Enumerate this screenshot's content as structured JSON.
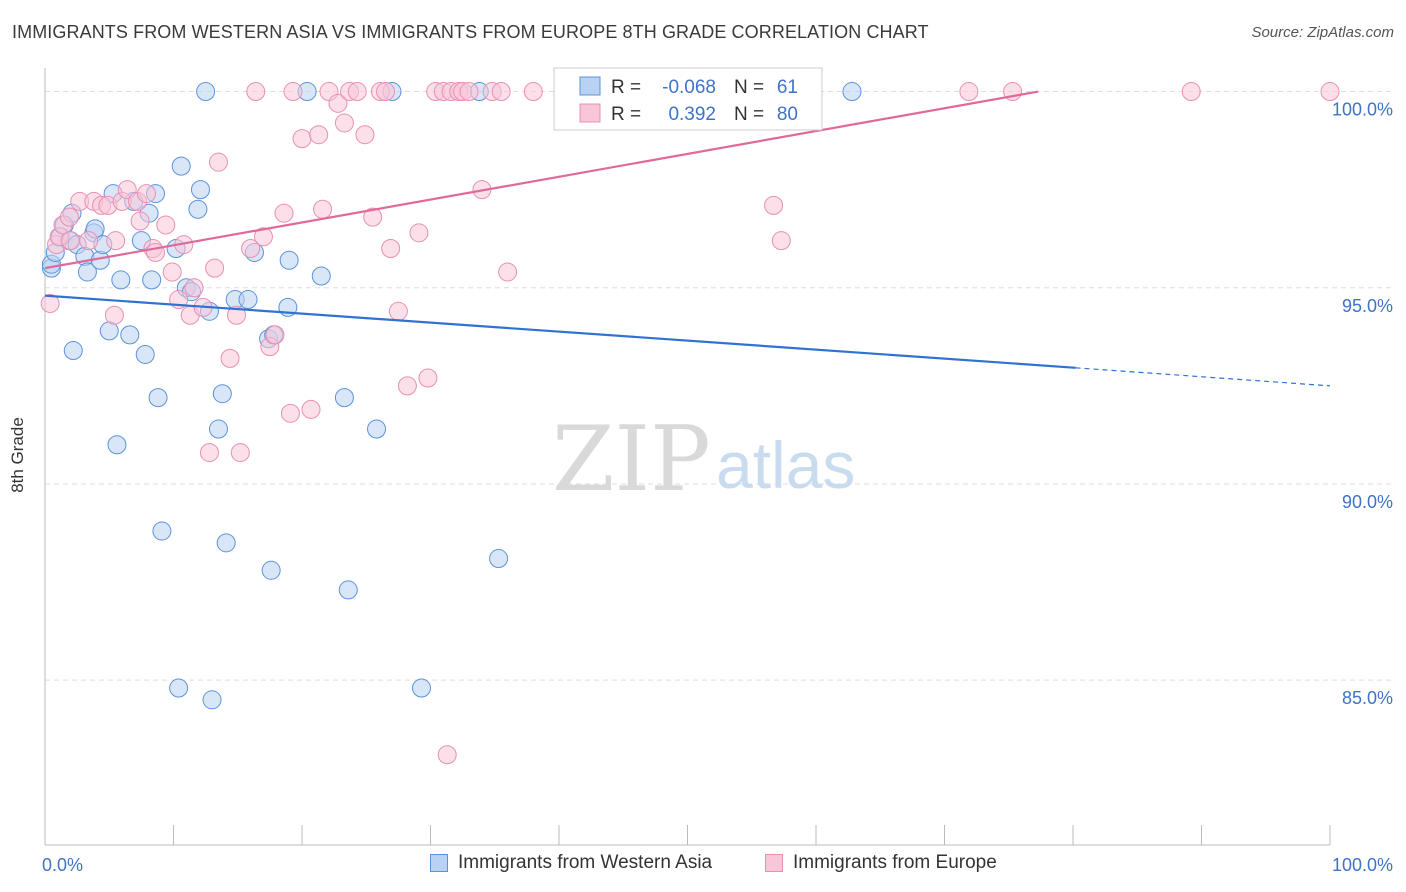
{
  "title": "IMMIGRANTS FROM WESTERN ASIA VS IMMIGRANTS FROM EUROPE 8TH GRADE CORRELATION CHART",
  "source": "Source: ZipAtlas.com",
  "watermark": {
    "zip": "ZIP",
    "atlas": "atlas"
  },
  "colors": {
    "blue": "#2f72d2",
    "blue_fill": "#b9d2f3",
    "blue_edge": "#5b93dc",
    "pink": "#e0699a",
    "pink_fill": "#f8c6d8",
    "pink_edge": "#ea8fb3",
    "grid": "#dddddd",
    "axis_text": "#3f73c8"
  },
  "legend_box": {
    "rows": [
      {
        "r_label": "R =",
        "r_value": "-0.068",
        "n_label": "N =",
        "n_value": "61"
      },
      {
        "r_label": "R =",
        "r_value": "0.392",
        "n_label": "N =",
        "n_value": "80"
      }
    ]
  },
  "bottom_legend": [
    "Immigrants from Western Asia",
    "Immigrants from Europe"
  ],
  "chart_data": {
    "type": "scatter",
    "title": "IMMIGRANTS FROM WESTERN ASIA VS IMMIGRANTS FROM EUROPE 8TH GRADE CORRELATION CHART",
    "xlabel": "",
    "ylabel": "8th Grade",
    "xlim": [
      0,
      100
    ],
    "ylim": [
      80.8,
      100.6
    ],
    "x_tick_labels": [
      "0.0%",
      "100.0%"
    ],
    "y_ticks": [
      100,
      95,
      90,
      85
    ],
    "y_tick_labels": [
      "100.0%",
      "95.0%",
      "90.0%",
      "85.0%"
    ],
    "grid": true,
    "series": [
      {
        "name": "Immigrants from Western Asia",
        "color": "#2f72d2",
        "R": -0.068,
        "N": 61,
        "trend": {
          "x1": 0,
          "y1": 94.8,
          "x2": 80.2,
          "y2": 92.96,
          "dash_to_x": 100,
          "dash_to_y": 92.5
        },
        "points": [
          [
            0.5,
            95.5
          ],
          [
            0.5,
            95.6
          ],
          [
            0.8,
            95.9
          ],
          [
            1.2,
            96.3
          ],
          [
            1.5,
            96.6
          ],
          [
            1.9,
            96.2
          ],
          [
            2.1,
            96.9
          ],
          [
            2.2,
            93.4
          ],
          [
            2.5,
            96.1
          ],
          [
            3.1,
            95.8
          ],
          [
            3.3,
            95.4
          ],
          [
            3.8,
            96.4
          ],
          [
            3.9,
            96.5
          ],
          [
            4.3,
            95.7
          ],
          [
            4.5,
            96.1
          ],
          [
            5.0,
            93.9
          ],
          [
            5.3,
            97.4
          ],
          [
            5.6,
            91.0
          ],
          [
            5.9,
            95.2
          ],
          [
            6.6,
            93.8
          ],
          [
            6.9,
            97.2
          ],
          [
            7.5,
            96.2
          ],
          [
            7.8,
            93.3
          ],
          [
            8.1,
            96.9
          ],
          [
            8.3,
            95.2
          ],
          [
            8.6,
            97.4
          ],
          [
            8.8,
            92.2
          ],
          [
            9.1,
            88.8
          ],
          [
            10.2,
            96.0
          ],
          [
            10.4,
            84.8
          ],
          [
            10.6,
            98.1
          ],
          [
            11.0,
            95.0
          ],
          [
            11.4,
            94.9
          ],
          [
            11.9,
            97.0
          ],
          [
            12.1,
            97.5
          ],
          [
            12.5,
            100.0
          ],
          [
            12.8,
            94.4
          ],
          [
            13.5,
            91.4
          ],
          [
            13.8,
            92.3
          ],
          [
            14.1,
            88.5
          ],
          [
            14.8,
            94.7
          ],
          [
            15.8,
            94.7
          ],
          [
            16.3,
            95.9
          ],
          [
            17.4,
            93.7
          ],
          [
            17.6,
            87.8
          ],
          [
            18.9,
            94.5
          ],
          [
            19.0,
            95.7
          ],
          [
            20.4,
            100.0
          ],
          [
            21.5,
            95.3
          ],
          [
            23.3,
            92.2
          ],
          [
            23.6,
            87.3
          ],
          [
            25.8,
            91.4
          ],
          [
            27.0,
            100.0
          ],
          [
            29.3,
            84.8
          ],
          [
            33.8,
            100.0
          ],
          [
            35.3,
            88.1
          ],
          [
            41.9,
            100.0
          ],
          [
            46.7,
            100.0
          ],
          [
            62.8,
            100.0
          ],
          [
            13.0,
            84.5
          ],
          [
            17.8,
            93.8
          ]
        ]
      },
      {
        "name": "Immigrants from Europe",
        "color": "#e0699a",
        "R": 0.392,
        "N": 80,
        "trend": {
          "x1": 0,
          "y1": 95.5,
          "x2": 77.3,
          "y2": 100.0
        },
        "points": [
          [
            0.4,
            94.6
          ],
          [
            0.9,
            96.1
          ],
          [
            1.1,
            96.3
          ],
          [
            1.4,
            96.6
          ],
          [
            1.9,
            96.8
          ],
          [
            2.0,
            96.2
          ],
          [
            2.7,
            97.2
          ],
          [
            3.4,
            96.2
          ],
          [
            3.8,
            97.2
          ],
          [
            4.4,
            97.1
          ],
          [
            4.9,
            97.1
          ],
          [
            5.4,
            94.3
          ],
          [
            5.5,
            96.2
          ],
          [
            6.0,
            97.2
          ],
          [
            6.4,
            97.5
          ],
          [
            7.2,
            97.2
          ],
          [
            7.4,
            96.7
          ],
          [
            7.9,
            97.4
          ],
          [
            8.4,
            96.0
          ],
          [
            8.6,
            95.9
          ],
          [
            9.4,
            96.6
          ],
          [
            9.9,
            95.4
          ],
          [
            10.4,
            94.7
          ],
          [
            10.8,
            96.1
          ],
          [
            11.3,
            94.3
          ],
          [
            11.6,
            95.0
          ],
          [
            12.3,
            94.5
          ],
          [
            12.8,
            90.8
          ],
          [
            13.2,
            95.5
          ],
          [
            13.5,
            98.2
          ],
          [
            14.4,
            93.2
          ],
          [
            14.9,
            94.3
          ],
          [
            15.2,
            90.8
          ],
          [
            16.0,
            96.0
          ],
          [
            16.4,
            100.0
          ],
          [
            17.0,
            96.3
          ],
          [
            17.5,
            93.5
          ],
          [
            17.9,
            93.8
          ],
          [
            18.6,
            96.9
          ],
          [
            19.1,
            91.8
          ],
          [
            19.3,
            100.0
          ],
          [
            20.0,
            98.8
          ],
          [
            20.7,
            91.9
          ],
          [
            21.3,
            98.9
          ],
          [
            21.6,
            97.0
          ],
          [
            22.1,
            100.0
          ],
          [
            22.8,
            99.7
          ],
          [
            23.3,
            99.2
          ],
          [
            23.7,
            100.0
          ],
          [
            24.3,
            100.0
          ],
          [
            24.9,
            98.9
          ],
          [
            25.5,
            96.8
          ],
          [
            26.1,
            100.0
          ],
          [
            26.5,
            100.0
          ],
          [
            26.9,
            96.0
          ],
          [
            27.5,
            94.4
          ],
          [
            28.2,
            92.5
          ],
          [
            29.1,
            96.4
          ],
          [
            29.8,
            92.7
          ],
          [
            30.4,
            100.0
          ],
          [
            31.0,
            100.0
          ],
          [
            31.6,
            100.0
          ],
          [
            32.2,
            100.0
          ],
          [
            32.5,
            100.0
          ],
          [
            33.0,
            100.0
          ],
          [
            34.0,
            97.5
          ],
          [
            34.8,
            100.0
          ],
          [
            35.5,
            100.0
          ],
          [
            36.0,
            95.4
          ],
          [
            38.0,
            100.0
          ],
          [
            41.3,
            100.0
          ],
          [
            44.3,
            100.0
          ],
          [
            53.6,
            100.0
          ],
          [
            56.7,
            97.1
          ],
          [
            57.3,
            96.2
          ],
          [
            71.9,
            100.0
          ],
          [
            75.3,
            100.0
          ],
          [
            89.2,
            100.0
          ],
          [
            100.0,
            100.0
          ],
          [
            31.3,
            83.1
          ]
        ]
      }
    ]
  }
}
